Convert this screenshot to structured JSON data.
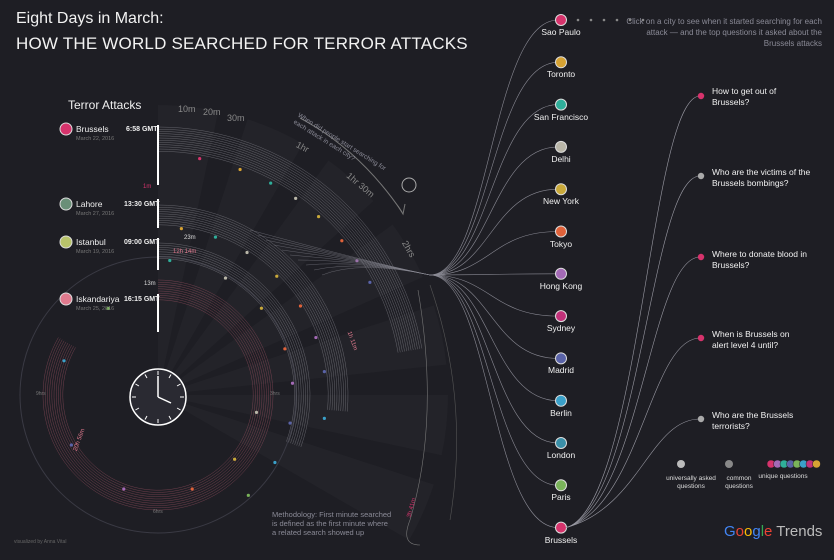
{
  "header": {
    "title_line1": "Eight Days in March:",
    "title_line2": "HOW THE WORLD SEARCHED FOR TERROR ATTACKS",
    "hint": "Click on a city to see when it started searching for each attack — and the top questions it asked about the Brussels attacks"
  },
  "attacks": {
    "heading": "Terror Attacks",
    "items": [
      {
        "name": "Brussels",
        "date": "March 22, 2016",
        "time": "6:58 GMT",
        "color": "#d6336c"
      },
      {
        "name": "Lahore",
        "date": "March 27, 2016",
        "time": "13:30 GMT",
        "color": "#6a8f78"
      },
      {
        "name": "Istanbul",
        "date": "March 19, 2016",
        "time": "09:00 GMT",
        "color": "#b9c46b"
      },
      {
        "name": "Iskandariya",
        "date": "March 25, 2016",
        "time": "16:15 GMT",
        "color": "#e07a8e"
      }
    ]
  },
  "radial": {
    "ring_labels": [
      "10m",
      "20m",
      "30m",
      "1hr",
      "1hr 30m",
      "2hrs"
    ],
    "annotation": "When did people start searching for each attack in each city?",
    "marks": [
      "1m",
      "23m",
      "12h 14m",
      "13m",
      "1h 11m",
      "3h 41m",
      "20h 56m"
    ],
    "clock_labels": [
      "9hrs",
      "3hrs",
      "6hrs"
    ]
  },
  "cities": [
    {
      "name": "Sao Paulo",
      "color": "#d6336c"
    },
    {
      "name": "Toronto",
      "color": "#d6a233"
    },
    {
      "name": "San Francisco",
      "color": "#2fae9a"
    },
    {
      "name": "Delhi",
      "color": "#b9b6a8"
    },
    {
      "name": "New York",
      "color": "#c9a93a"
    },
    {
      "name": "Tokyo",
      "color": "#e0623a"
    },
    {
      "name": "Hong Kong",
      "color": "#a46ab6"
    },
    {
      "name": "Sydney",
      "color": "#c2327a"
    },
    {
      "name": "Madrid",
      "color": "#5a63a8"
    },
    {
      "name": "Berlin",
      "color": "#3aa0c9"
    },
    {
      "name": "London",
      "color": "#3a8fa8"
    },
    {
      "name": "Paris",
      "color": "#7ab35a"
    },
    {
      "name": "Brussels",
      "color": "#d6336c"
    }
  ],
  "questions": [
    {
      "text": "How to get out of Brussels?",
      "color": "#d6336c"
    },
    {
      "text": "Who are the victims of the Brussels bombings?",
      "color": "#aaaaaa"
    },
    {
      "text": "Where to donate blood in Brussels?",
      "color": "#d6336c"
    },
    {
      "text": "When is Brussels on alert level 4 until?",
      "color": "#d6336c"
    },
    {
      "text": "Who are the Brussels terrorists?",
      "color": "#aaaaaa"
    }
  ],
  "legend": {
    "universal": "universally asked questions",
    "common": "common questions",
    "unique": "unique questions",
    "unique_colors": [
      "#d6336c",
      "#a46ab6",
      "#2fae9a",
      "#5a63a8",
      "#7ab35a",
      "#3aa0c9",
      "#c2327a",
      "#d6a233"
    ]
  },
  "footer": {
    "methodology": "Methodology: First minute searched is defined as the first minute where a related search showed up",
    "credit": "visualized by Anna Vital",
    "brand_google": "Google",
    "brand_trends": "Trends"
  }
}
